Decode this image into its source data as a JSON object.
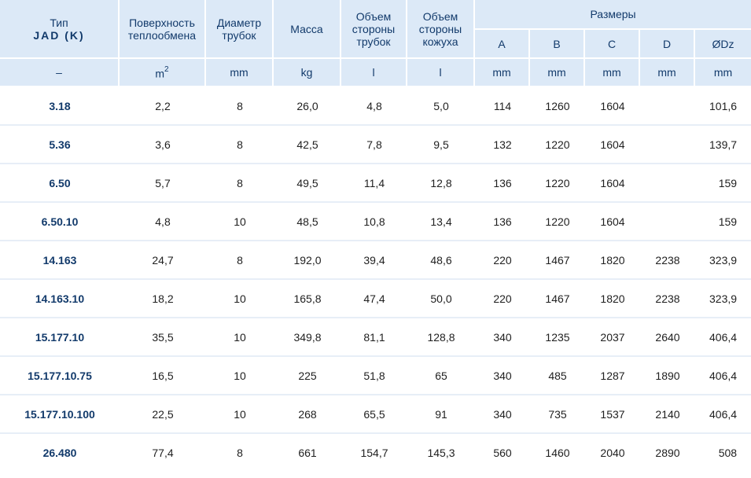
{
  "header": {
    "type_label": "Тип",
    "type_model": "JAD (K)",
    "surface": [
      "Поверхность",
      "теплообмена"
    ],
    "diameter": [
      "Диаметр",
      "трубок"
    ],
    "mass": "Масса",
    "tube_volume": [
      "Объем",
      "стороны",
      "трубок"
    ],
    "shell_volume": [
      "Объем",
      "стороны",
      "кожуха"
    ],
    "dimensions": "Размеры",
    "dim_cols": [
      "A",
      "B",
      "C",
      "D",
      "ØDz"
    ]
  },
  "units": {
    "type": "–",
    "surface_base": "m",
    "surface_exp": "2",
    "diameter": "mm",
    "mass": "kg",
    "tube_volume": "l",
    "shell_volume": "l",
    "a": "mm",
    "b": "mm",
    "c": "mm",
    "d": "mm",
    "dz": "mm"
  },
  "rows": [
    {
      "type": "3.18",
      "surface": "2,2",
      "diameter": "8",
      "mass": "26,0",
      "tube_volume": "4,8",
      "shell_volume": "5,0",
      "a": "114",
      "b": "1260",
      "c": "1604",
      "d": "",
      "dz": "101,6"
    },
    {
      "type": "5.36",
      "surface": "3,6",
      "diameter": "8",
      "mass": "42,5",
      "tube_volume": "7,8",
      "shell_volume": "9,5",
      "a": "132",
      "b": "1220",
      "c": "1604",
      "d": "",
      "dz": "139,7"
    },
    {
      "type": "6.50",
      "surface": "5,7",
      "diameter": "8",
      "mass": "49,5",
      "tube_volume": "11,4",
      "shell_volume": "12,8",
      "a": "136",
      "b": "1220",
      "c": "1604",
      "d": "",
      "dz": "159"
    },
    {
      "type": "6.50.10",
      "surface": "4,8",
      "diameter": "10",
      "mass": "48,5",
      "tube_volume": "10,8",
      "shell_volume": "13,4",
      "a": "136",
      "b": "1220",
      "c": "1604",
      "d": "",
      "dz": "159"
    },
    {
      "type": "14.163",
      "surface": "24,7",
      "diameter": "8",
      "mass": "192,0",
      "tube_volume": "39,4",
      "shell_volume": "48,6",
      "a": "220",
      "b": "1467",
      "c": "1820",
      "d": "2238",
      "dz": "323,9"
    },
    {
      "type": "14.163.10",
      "surface": "18,2",
      "diameter": "10",
      "mass": "165,8",
      "tube_volume": "47,4",
      "shell_volume": "50,0",
      "a": "220",
      "b": "1467",
      "c": "1820",
      "d": "2238",
      "dz": "323,9"
    },
    {
      "type": "15.177.10",
      "surface": "35,5",
      "diameter": "10",
      "mass": "349,8",
      "tube_volume": "81,1",
      "shell_volume": "128,8",
      "a": "340",
      "b": "1235",
      "c": "2037",
      "d": "2640",
      "dz": "406,4"
    },
    {
      "type": "15.177.10.75",
      "surface": "16,5",
      "diameter": "10",
      "mass": "225",
      "tube_volume": "51,8",
      "shell_volume": "65",
      "a": "340",
      "b": "485",
      "c": "1287",
      "d": "1890",
      "dz": "406,4"
    },
    {
      "type": "15.177.10.100",
      "surface": "22,5",
      "diameter": "10",
      "mass": "268",
      "tube_volume": "65,5",
      "shell_volume": "91",
      "a": "340",
      "b": "735",
      "c": "1537",
      "d": "2140",
      "dz": "406,4"
    },
    {
      "type": "26.480",
      "surface": "77,4",
      "diameter": "8",
      "mass": "661",
      "tube_volume": "154,7",
      "shell_volume": "145,3",
      "a": "560",
      "b": "1460",
      "c": "2040",
      "d": "2890",
      "dz": "508"
    }
  ],
  "colors": {
    "header_bg": "#dce9f7",
    "header_text": "#123a6b",
    "row_divider": "#e7eef7"
  }
}
